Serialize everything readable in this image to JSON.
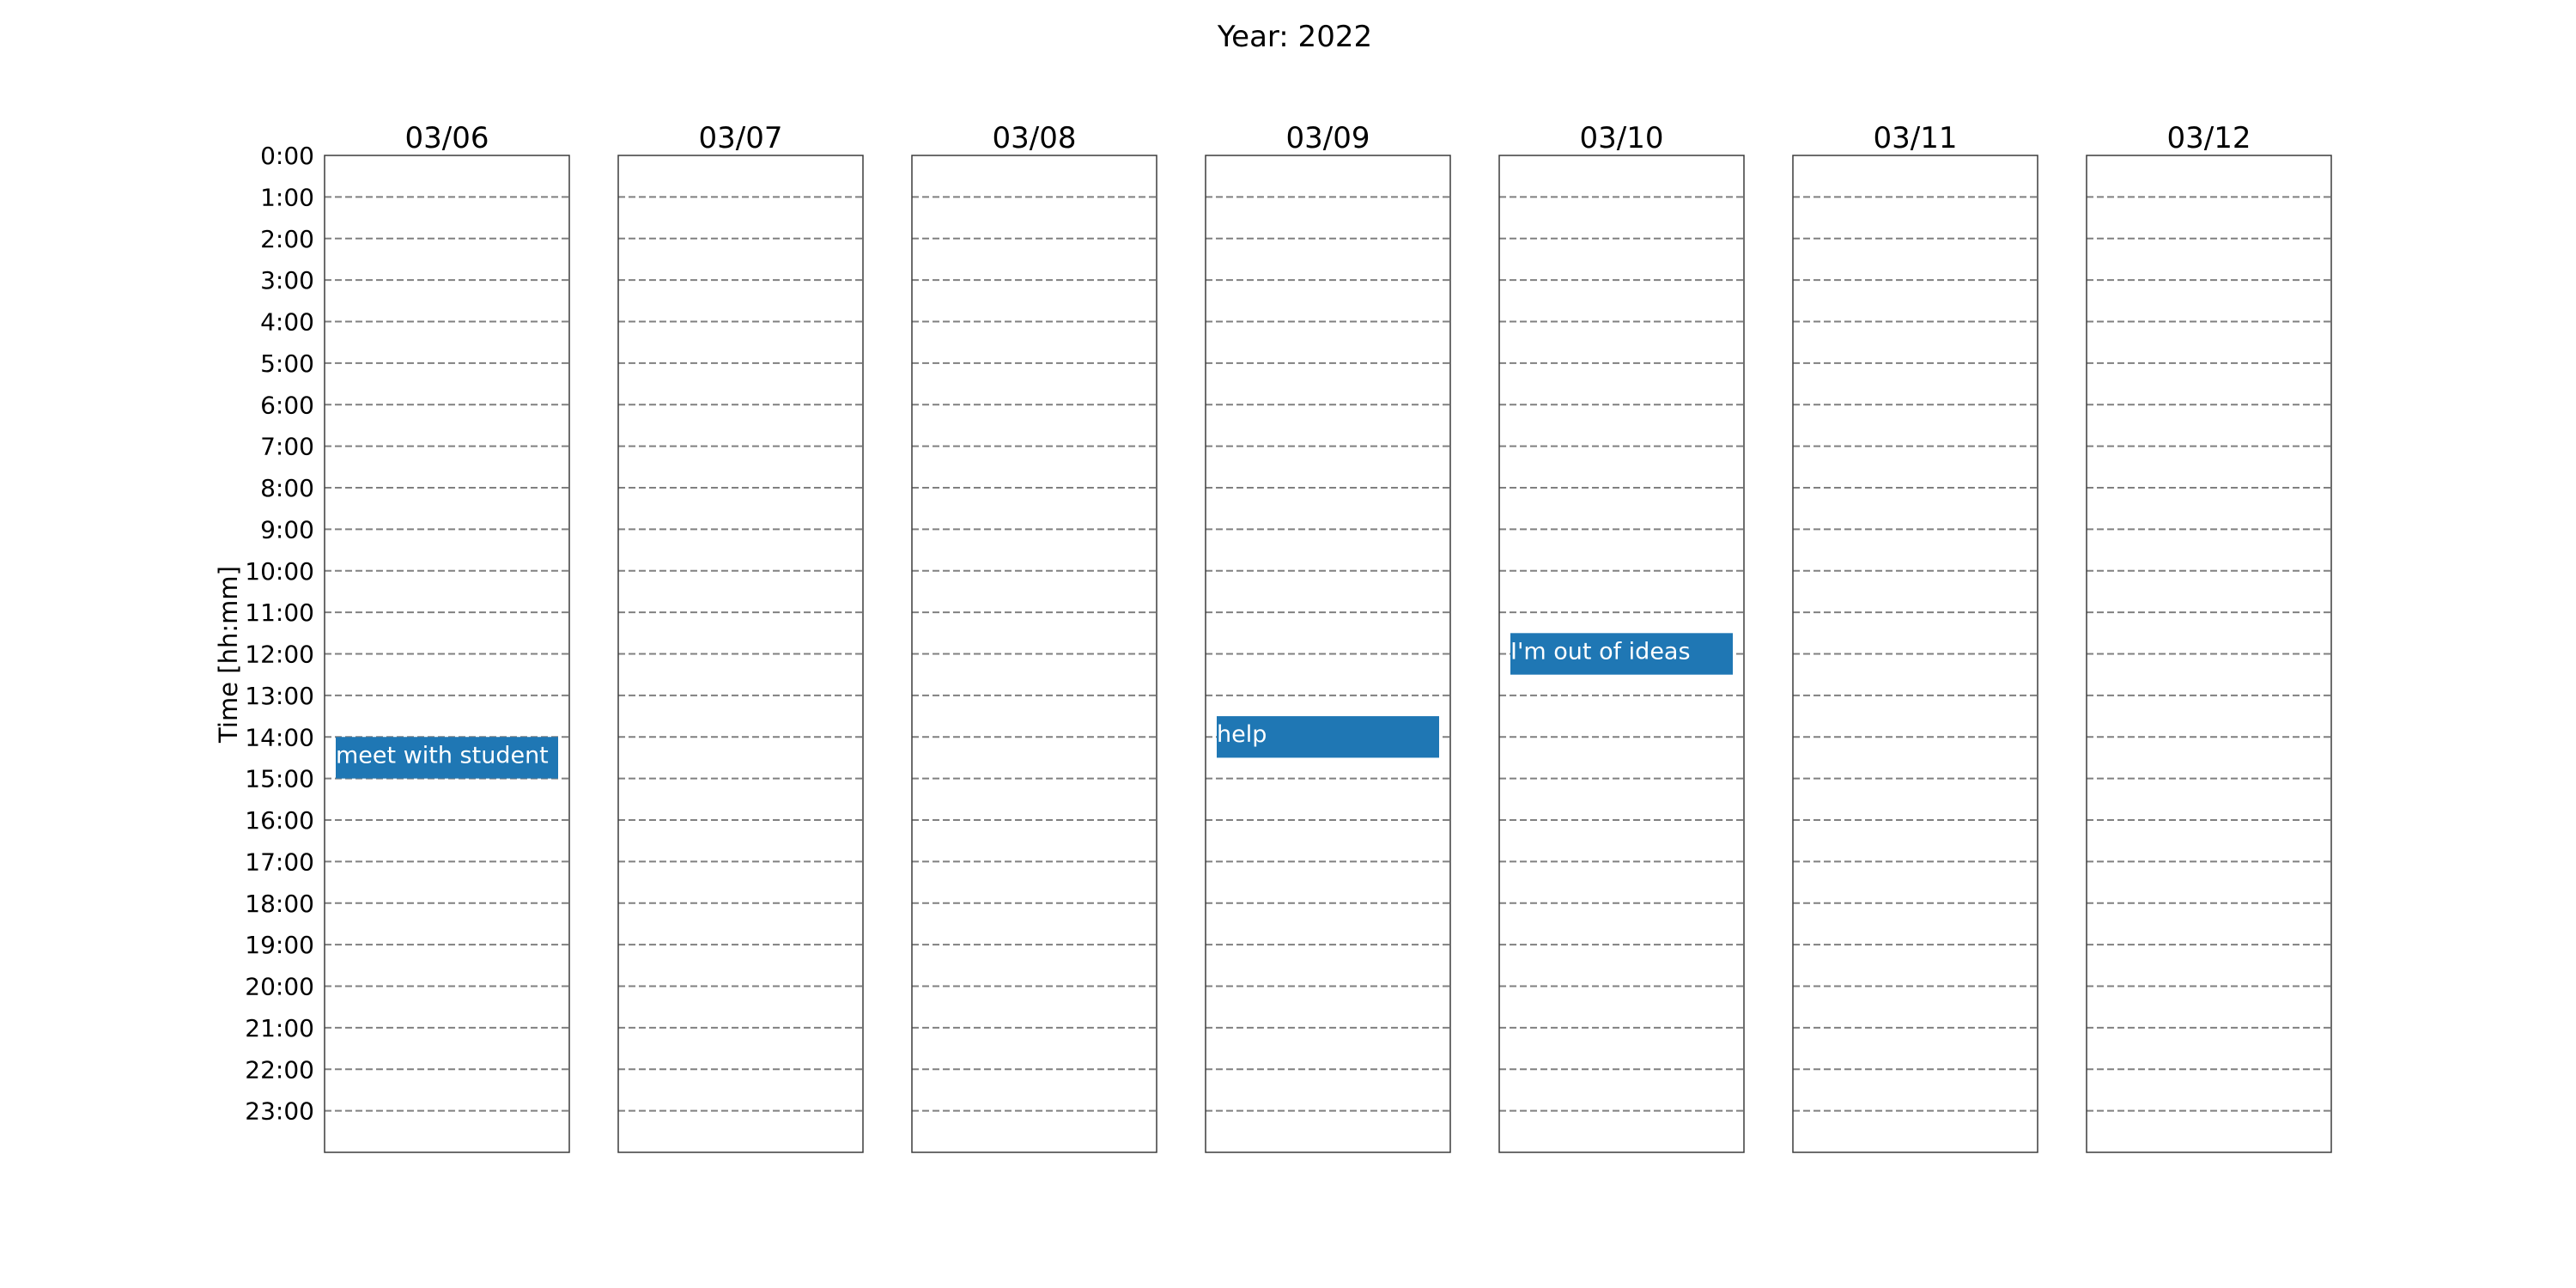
{
  "chart_data": {
    "type": "calendar",
    "title": "Year: 2022",
    "ylabel": "Time [hh:mm]",
    "days": [
      "03/06",
      "03/07",
      "03/08",
      "03/09",
      "03/10",
      "03/11",
      "03/12"
    ],
    "time_ticks": [
      "0:00",
      "1:00",
      "2:00",
      "3:00",
      "4:00",
      "5:00",
      "6:00",
      "7:00",
      "8:00",
      "9:00",
      "10:00",
      "11:00",
      "12:00",
      "13:00",
      "14:00",
      "15:00",
      "16:00",
      "17:00",
      "18:00",
      "19:00",
      "20:00",
      "21:00",
      "22:00",
      "23:00"
    ],
    "ylim": [
      0,
      24
    ],
    "grid": true,
    "events": [
      {
        "day": "03/06",
        "start": 14.0,
        "end": 15.0,
        "label": "meet with student"
      },
      {
        "day": "03/09",
        "start": 13.5,
        "end": 14.5,
        "label": "help"
      },
      {
        "day": "03/10",
        "start": 11.5,
        "end": 12.5,
        "label": "I'm out of ideas"
      }
    ],
    "event_color": "#1f77b4"
  }
}
